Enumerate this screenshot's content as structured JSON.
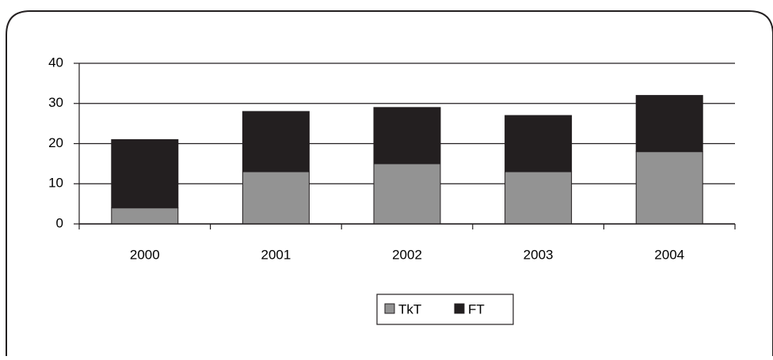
{
  "chart_data": {
    "type": "bar",
    "stacked": true,
    "categories": [
      "2000",
      "2001",
      "2002",
      "2003",
      "2004"
    ],
    "series": [
      {
        "name": "TkT",
        "color": "#939393",
        "values": [
          4,
          13,
          15,
          13,
          18
        ]
      },
      {
        "name": "FT",
        "color": "#231f20",
        "values": [
          17,
          15,
          14,
          14,
          14
        ]
      }
    ],
    "ylim": [
      0,
      40
    ],
    "yticks": [
      0,
      10,
      20,
      30,
      40
    ],
    "grid": true,
    "legend": "bottom"
  }
}
